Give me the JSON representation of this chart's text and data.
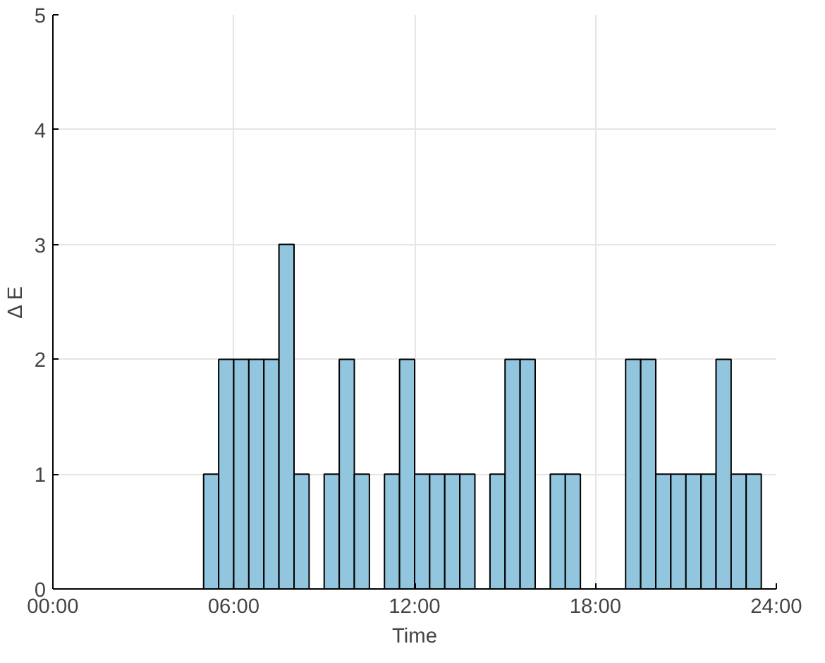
{
  "chart_data": {
    "type": "histogram",
    "xlabel": "Time",
    "ylabel": "Δ E",
    "bins": [
      0,
      0.5,
      1,
      1.5,
      2,
      2.5,
      3,
      3.5,
      4,
      4.5,
      5,
      5.5,
      6,
      6.5,
      7,
      7.5,
      8,
      8.5,
      9,
      9.5,
      10,
      10.5,
      11,
      11.5,
      12,
      12.5,
      13,
      13.5,
      14,
      14.5,
      15,
      15.5,
      16,
      16.5,
      17,
      17.5,
      18,
      18.5,
      19,
      19.5,
      20,
      20.5,
      21,
      21.5,
      22,
      22.5,
      23,
      23.5,
      24
    ],
    "values": [
      0,
      0,
      0,
      0,
      0,
      0,
      0,
      0,
      0,
      0,
      1,
      2,
      2,
      2,
      2,
      3,
      1,
      0,
      1,
      2,
      1,
      0,
      1,
      2,
      1,
      1,
      1,
      1,
      0,
      1,
      2,
      2,
      0,
      1,
      1,
      0,
      0,
      0,
      2,
      2,
      1,
      1,
      1,
      1,
      2,
      1,
      1,
      0
    ],
    "color": "#92c5de",
    "xlim": [
      0,
      24
    ],
    "xticks": [
      {
        "value": 0,
        "label": "00:00"
      },
      {
        "value": 6,
        "label": "06:00"
      },
      {
        "value": 12,
        "label": "12:00"
      },
      {
        "value": 18,
        "label": "18:00"
      },
      {
        "value": 24,
        "label": "24:00"
      }
    ],
    "ylim": [
      0,
      5
    ],
    "yticks": [
      0,
      1,
      2,
      3,
      4,
      5
    ],
    "grid": true
  }
}
